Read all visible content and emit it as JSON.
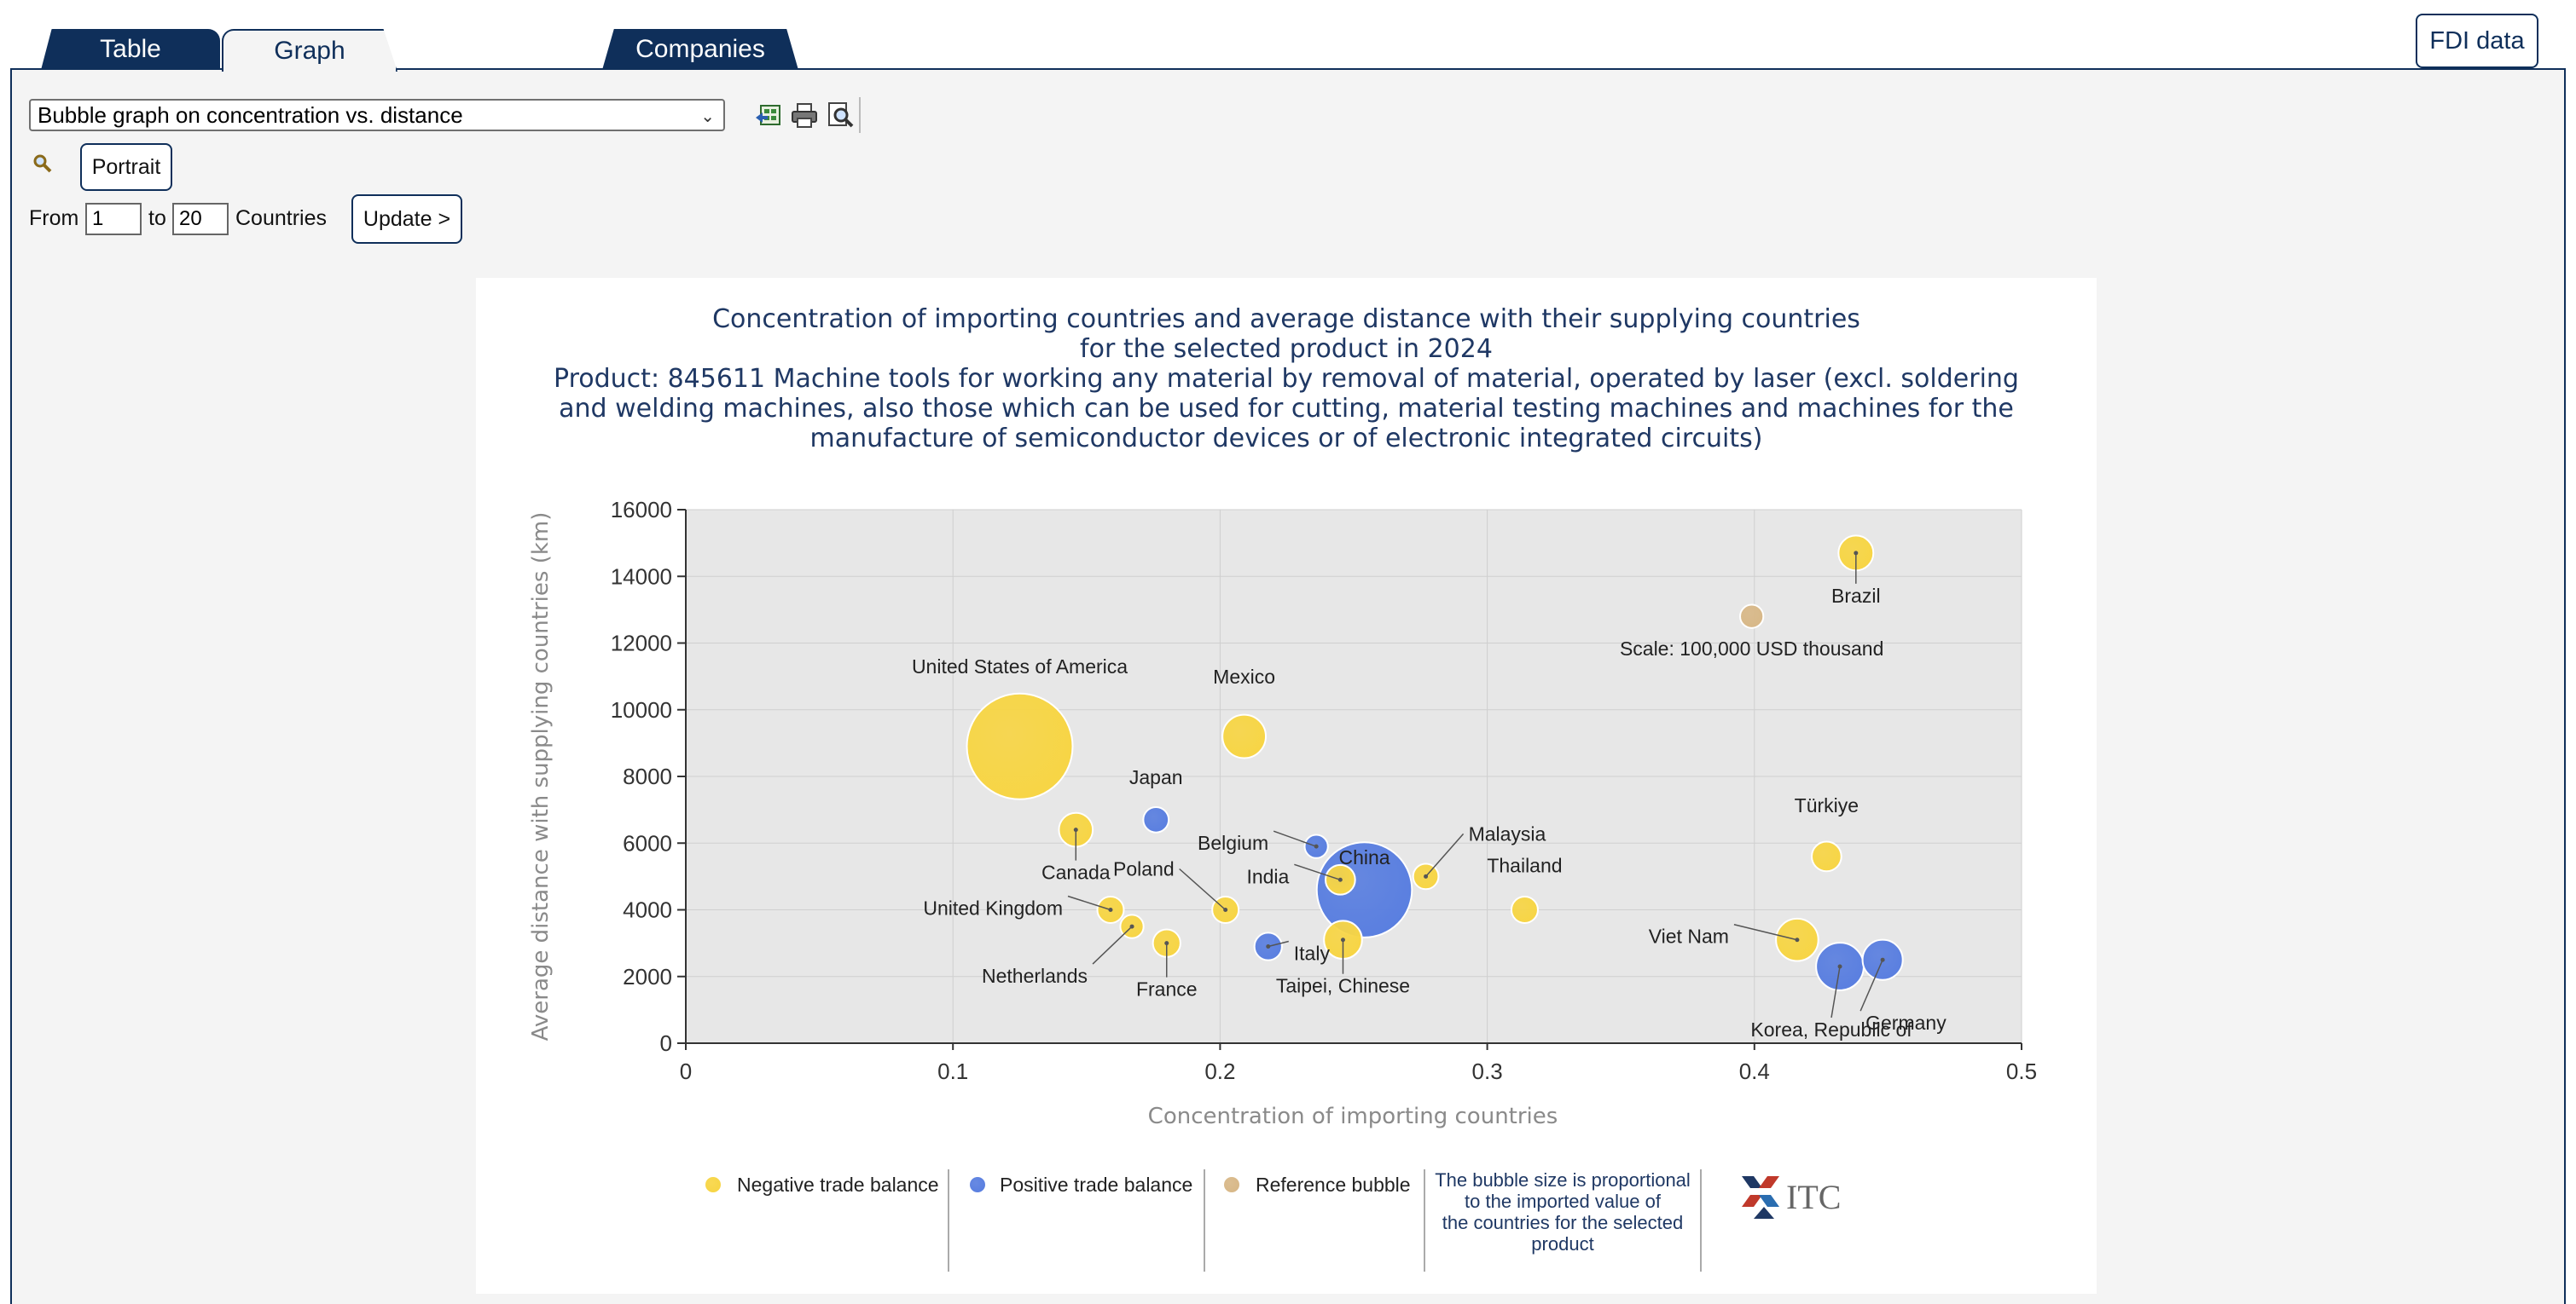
{
  "tabs": {
    "table": "Table",
    "graph": "Graph",
    "companies": "Companies"
  },
  "fdi_button": "FDI data",
  "controls": {
    "graph_type_selected": "Bubble graph on concentration vs. distance",
    "portrait_label": "Portrait",
    "from_label": "From",
    "from_value": "1",
    "to_label": "to",
    "to_value": "20",
    "countries_label": "Countries",
    "update_label": "Update >"
  },
  "icons": [
    "export-excel-icon",
    "print-icon",
    "preview-icon",
    "zoom-icon",
    "itc-logo-icon"
  ],
  "chart_data": {
    "type": "scatter",
    "title_lines": [
      "Concentration of importing countries and average distance with their supplying countries",
      "for the selected product in 2024",
      "Product: 845611 Machine tools for working any material by removal of material, operated by laser (excl. soldering",
      "and welding machines, also those which can be used for cutting, material testing machines and machines for the",
      "manufacture of semiconductor devices or of electronic integrated circuits)"
    ],
    "xlabel": "Concentration of importing countries",
    "ylabel": "Average distance with supplying countries (km)",
    "xlim": [
      0,
      0.5
    ],
    "ylim": [
      0,
      16000
    ],
    "x_ticks": [
      "0",
      "0.1",
      "0.2",
      "0.3",
      "0.4",
      "0.5"
    ],
    "y_ticks": [
      "0",
      "2000",
      "4000",
      "6000",
      "8000",
      "10000",
      "12000",
      "14000",
      "16000"
    ],
    "grid": true,
    "colors": {
      "negative": "#f7d545",
      "positive": "#5a7fe0",
      "reference": "#d8b888"
    },
    "points": [
      {
        "label": "United States of America",
        "x": 0.125,
        "y": 8900,
        "r": 1.0,
        "balance": "negative"
      },
      {
        "label": "Mexico",
        "x": 0.209,
        "y": 9200,
        "r": 0.41,
        "balance": "negative"
      },
      {
        "label": "Canada",
        "x": 0.146,
        "y": 6400,
        "r": 0.32,
        "balance": "negative"
      },
      {
        "label": "Japan",
        "x": 0.176,
        "y": 6700,
        "r": 0.24,
        "balance": "positive"
      },
      {
        "label": "United Kingdom",
        "x": 0.159,
        "y": 4000,
        "r": 0.25,
        "balance": "negative"
      },
      {
        "label": "Netherlands",
        "x": 0.167,
        "y": 3500,
        "r": 0.22,
        "balance": "negative"
      },
      {
        "label": "France",
        "x": 0.18,
        "y": 3000,
        "r": 0.26,
        "balance": "negative"
      },
      {
        "label": "Poland",
        "x": 0.202,
        "y": 4000,
        "r": 0.25,
        "balance": "negative"
      },
      {
        "label": "Italy",
        "x": 0.218,
        "y": 2900,
        "r": 0.26,
        "balance": "positive"
      },
      {
        "label": "Belgium",
        "x": 0.236,
        "y": 5900,
        "r": 0.22,
        "balance": "positive"
      },
      {
        "label": "China",
        "x": 0.254,
        "y": 4600,
        "r": 0.9,
        "balance": "positive"
      },
      {
        "label": "India",
        "x": 0.245,
        "y": 4900,
        "r": 0.28,
        "balance": "negative"
      },
      {
        "label": "Taipei, Chinese",
        "x": 0.246,
        "y": 3100,
        "r": 0.36,
        "balance": "negative"
      },
      {
        "label": "Malaysia",
        "x": 0.277,
        "y": 5000,
        "r": 0.24,
        "balance": "negative"
      },
      {
        "label": "Thailand",
        "x": 0.314,
        "y": 4000,
        "r": 0.25,
        "balance": "negative"
      },
      {
        "label": "Brazil",
        "x": 0.438,
        "y": 14700,
        "r": 0.33,
        "balance": "negative"
      },
      {
        "label": "Türkiye",
        "x": 0.427,
        "y": 5600,
        "r": 0.28,
        "balance": "negative"
      },
      {
        "label": "Viet Nam",
        "x": 0.416,
        "y": 3100,
        "r": 0.4,
        "balance": "negative"
      },
      {
        "label": "Korea, Republic of",
        "x": 0.432,
        "y": 2300,
        "r": 0.45,
        "balance": "positive"
      },
      {
        "label": "Germany",
        "x": 0.448,
        "y": 2500,
        "r": 0.38,
        "balance": "positive"
      }
    ],
    "reference": {
      "label": "Scale: 100,000 USD thousand",
      "x": 0.399,
      "y": 12800,
      "r": 0.22
    },
    "legend": {
      "negative": "Negative trade balance",
      "positive": "Positive trade balance",
      "reference": "Reference bubble",
      "note": [
        "The bubble size is proportional",
        "to the imported value of",
        "the countries for the selected",
        "product"
      ],
      "logo_text": "ITC"
    }
  }
}
